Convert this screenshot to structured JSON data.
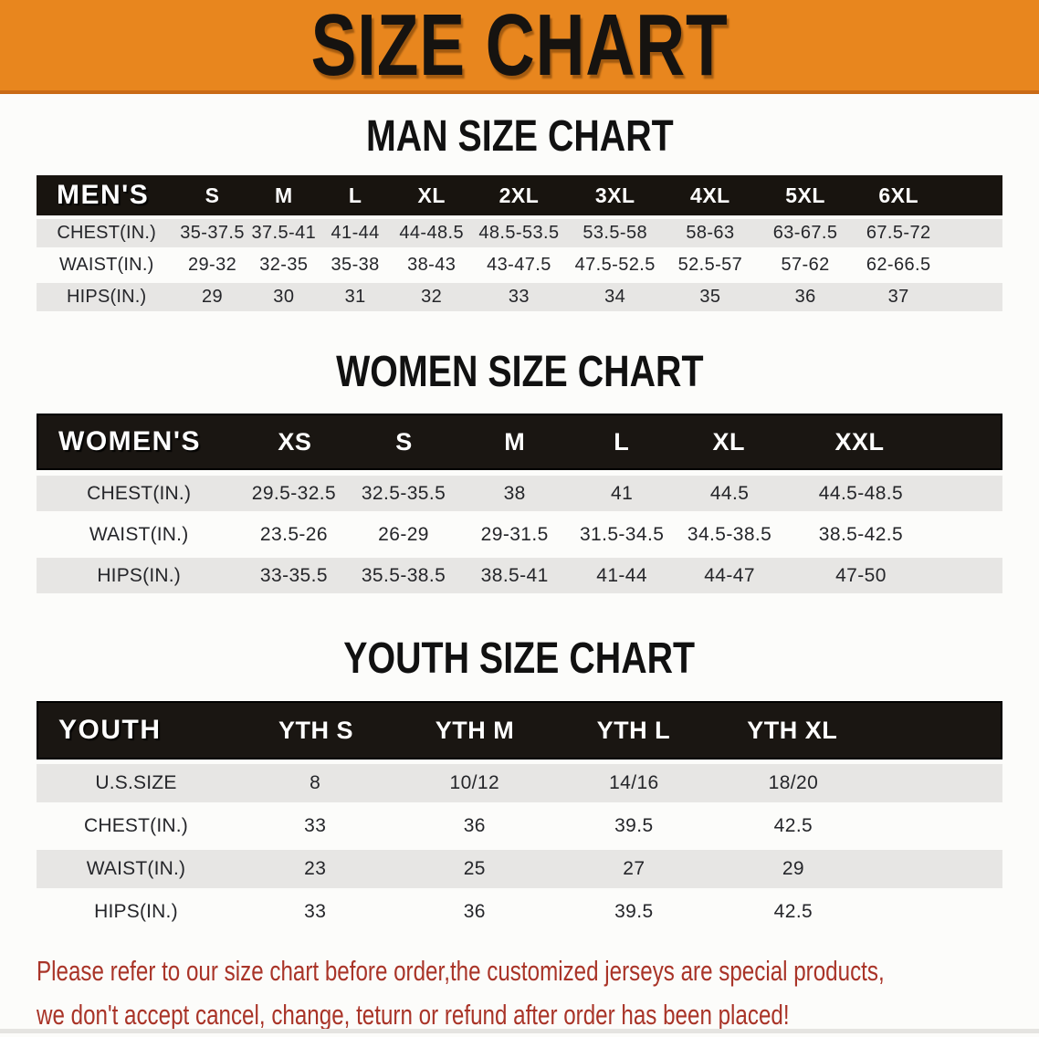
{
  "banner": {
    "title": "SIZE CHART"
  },
  "sections": [
    {
      "heading": "MAN SIZE CHART",
      "label": "MEN'S",
      "columns": [
        "S",
        "M",
        "L",
        "XL",
        "2XL",
        "3XL",
        "4XL",
        "5XL",
        "6XL"
      ],
      "rows": [
        {
          "label": "CHEST(IN.)",
          "values": [
            "35-37.5",
            "37.5-41",
            "41-44",
            "44-48.5",
            "48.5-53.5",
            "53.5-58",
            "58-63",
            "63-67.5",
            "67.5-72"
          ]
        },
        {
          "label": "WAIST(IN.)",
          "values": [
            "29-32",
            "32-35",
            "35-38",
            "38-43",
            "43-47.5",
            "47.5-52.5",
            "52.5-57",
            "57-62",
            "62-66.5"
          ]
        },
        {
          "label": "HIPS(IN.)",
          "values": [
            "29",
            "30",
            "31",
            "32",
            "33",
            "34",
            "35",
            "36",
            "37"
          ]
        }
      ]
    },
    {
      "heading": "WOMEN SIZE CHART",
      "label": "WOMEN'S",
      "columns": [
        "XS",
        "S",
        "M",
        "L",
        "XL",
        "XXL"
      ],
      "rows": [
        {
          "label": "CHEST(IN.)",
          "values": [
            "29.5-32.5",
            "32.5-35.5",
            "38",
            "41",
            "44.5",
            "44.5-48.5"
          ]
        },
        {
          "label": "WAIST(IN.)",
          "values": [
            "23.5-26",
            "26-29",
            "29-31.5",
            "31.5-34.5",
            "34.5-38.5",
            "38.5-42.5"
          ]
        },
        {
          "label": "HIPS(IN.)",
          "values": [
            "33-35.5",
            "35.5-38.5",
            "38.5-41",
            "41-44",
            "44-47",
            "47-50"
          ]
        }
      ]
    },
    {
      "heading": "YOUTH SIZE CHART",
      "label": "YOUTH",
      "columns": [
        "YTH S",
        "YTH M",
        "YTH L",
        "YTH XL"
      ],
      "rows": [
        {
          "label": "U.S.SIZE",
          "values": [
            "8",
            "10/12",
            "14/16",
            "18/20"
          ]
        },
        {
          "label": "CHEST(IN.)",
          "values": [
            "33",
            "36",
            "39.5",
            "42.5"
          ]
        },
        {
          "label": "WAIST(IN.)",
          "values": [
            "23",
            "25",
            "27",
            "29"
          ]
        },
        {
          "label": "HIPS(IN.)",
          "values": [
            "33",
            "36",
            "39.5",
            "42.5"
          ]
        }
      ]
    }
  ],
  "footer": {
    "line1": "Please refer to our size chart before order,the customized jerseys are special products,",
    "line2": "we don't accept cancel, change, teturn or refund after order has been placed!"
  },
  "colors": {
    "banner_orange": "#E8861E",
    "banner_edge": "#C96A15",
    "header_black": "#18140F",
    "row_gray": "#E7E6E4",
    "footer_red": "#A93428"
  }
}
